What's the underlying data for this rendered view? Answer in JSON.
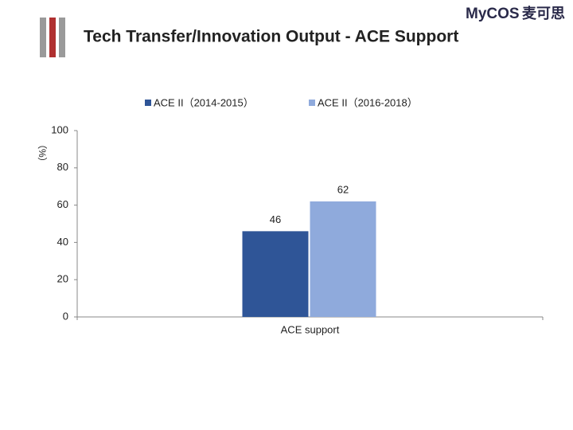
{
  "logo": {
    "brand": "MyCOS",
    "chinese": "麦可思"
  },
  "chart_data": {
    "type": "bar",
    "title": "Tech Transfer/Innovation Output - ACE Support",
    "y_label": "（%）",
    "categories": [
      "ACE support"
    ],
    "series": [
      {
        "name": "ACE II（2014-2015）",
        "color": "#2f5597",
        "values": [
          46
        ]
      },
      {
        "name": "ACE II（2016-2018）",
        "color": "#8faadc",
        "values": [
          62
        ]
      }
    ],
    "ylim": [
      0,
      100
    ],
    "yticks": [
      0,
      20,
      40,
      60,
      80,
      100
    ],
    "grid": false,
    "legend": "top"
  }
}
